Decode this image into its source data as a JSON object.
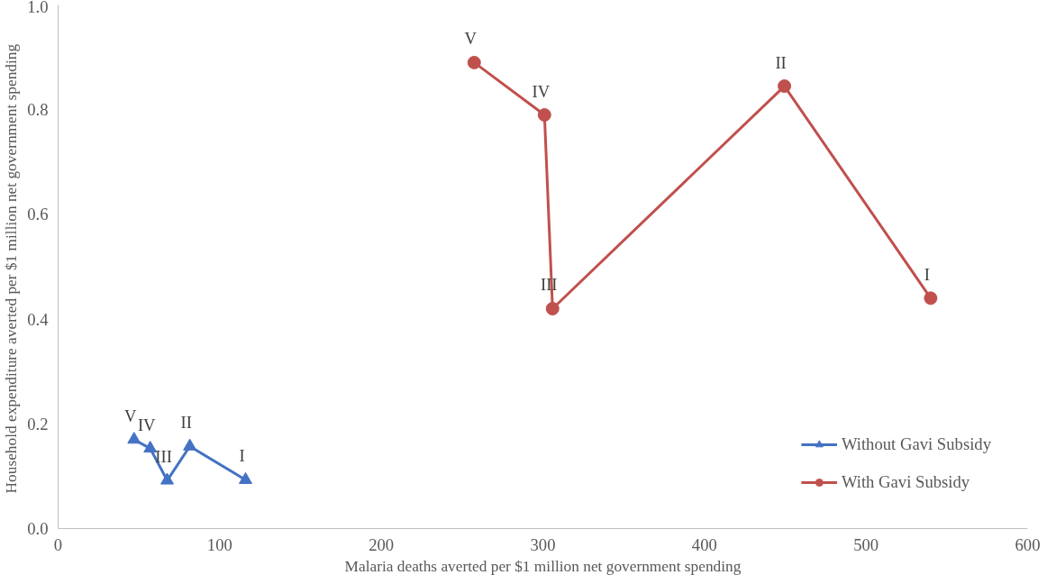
{
  "chart_data": {
    "type": "line",
    "xlabel": "Malaria deaths averted per $1 million net government spending",
    "ylabel": "Household  expenditure averted per $1 million net government spending",
    "xlim": [
      0,
      600
    ],
    "xticks": [
      0,
      100,
      200,
      300,
      400,
      500,
      600
    ],
    "ylim": [
      0,
      1.0
    ],
    "yticks": [
      {
        "value": 0,
        "label": "0.0"
      },
      {
        "value": 0.2,
        "label": "0.2"
      },
      {
        "value": 0.4,
        "label": "0.4"
      },
      {
        "value": 0.6,
        "label": "0.6"
      },
      {
        "value": 0.8,
        "label": "0.8"
      },
      {
        "value": 1.0,
        "label": "1.0"
      }
    ],
    "grid": false,
    "legend": "bottom right",
    "series": [
      {
        "name": "Without Gavi Subsidy",
        "color": "#4472c4",
        "marker": "triangle",
        "x": [
          116,
          81.5,
          67.5,
          57,
          47
        ],
        "values": [
          0.093,
          0.157,
          0.092,
          0.153,
          0.17
        ]
      },
      {
        "name": "With Gavi Subsidy",
        "color": "#c0504d",
        "marker": "circle",
        "x": [
          540,
          449.5,
          306,
          301,
          257.5
        ],
        "values": [
          0.44,
          0.845,
          0.42,
          0.79,
          0.89
        ]
      }
    ],
    "annotations": [
      {
        "text": "I",
        "x": 116,
        "y": 0.093
      },
      {
        "text": "II",
        "x": 81.5,
        "y": 0.157
      },
      {
        "text": "III",
        "x": 67.5,
        "y": 0.092
      },
      {
        "text": "IV",
        "x": 57,
        "y": 0.153
      },
      {
        "text": "V",
        "x": 47,
        "y": 0.17
      },
      {
        "text": "I",
        "x": 540,
        "y": 0.44
      },
      {
        "text": "II",
        "x": 449.5,
        "y": 0.845
      },
      {
        "text": "III",
        "x": 306,
        "y": 0.42
      },
      {
        "text": "IV",
        "x": 301,
        "y": 0.79
      },
      {
        "text": "V",
        "x": 257.5,
        "y": 0.89
      }
    ]
  }
}
